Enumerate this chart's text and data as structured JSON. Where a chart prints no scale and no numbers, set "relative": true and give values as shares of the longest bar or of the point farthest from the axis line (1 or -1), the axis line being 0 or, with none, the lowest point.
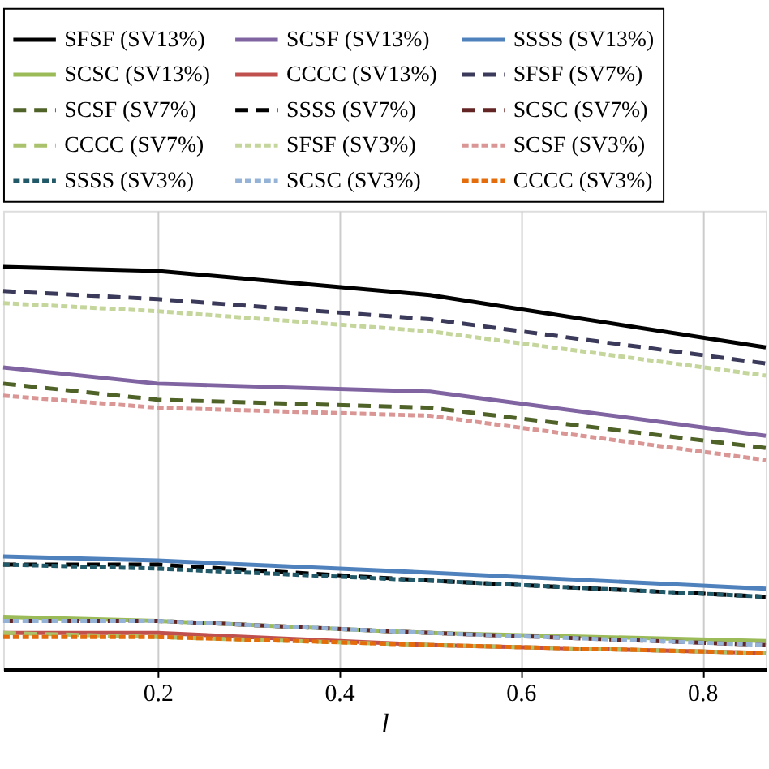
{
  "chart_data": {
    "type": "line",
    "relative": true,
    "xlabel": "l",
    "xlim": [
      0.03,
      0.87
    ],
    "xticks": [
      0.2,
      0.4,
      0.6,
      0.8
    ],
    "grid": "x",
    "legend": "top",
    "marker": "none",
    "series": [
      {
        "name": "SFSF (SV13%)",
        "color": "#000000",
        "line_style": "solid",
        "x": [
          0.03,
          0.2,
          0.5,
          0.87
        ],
        "values": [
          1.0,
          0.99,
          0.93,
          0.8
        ]
      },
      {
        "name": "SCSF (SV13%)",
        "color": "#8064a2",
        "line_style": "solid",
        "x": [
          0.03,
          0.2,
          0.5,
          0.87
        ],
        "values": [
          0.75,
          0.71,
          0.69,
          0.58
        ]
      },
      {
        "name": "SSSS (SV13%)",
        "color": "#4f81bd",
        "line_style": "solid",
        "x": [
          0.03,
          0.2,
          0.5,
          0.87
        ],
        "values": [
          0.28,
          0.27,
          0.24,
          0.2
        ]
      },
      {
        "name": "SCSC (SV13%)",
        "color": "#9bbb59",
        "line_style": "solid",
        "x": [
          0.03,
          0.2,
          0.5,
          0.87
        ],
        "values": [
          0.13,
          0.12,
          0.09,
          0.07
        ]
      },
      {
        "name": "CCCC (SV13%)",
        "color": "#c0504d",
        "line_style": "solid",
        "x": [
          0.03,
          0.2,
          0.5,
          0.87
        ],
        "values": [
          0.09,
          0.09,
          0.06,
          0.04
        ]
      },
      {
        "name": "SFSF (SV7%)",
        "color": "#3b3a5a",
        "line_style": "dashed",
        "x": [
          0.03,
          0.2,
          0.5,
          0.87
        ],
        "values": [
          0.94,
          0.92,
          0.87,
          0.76
        ]
      },
      {
        "name": "SCSF (SV7%)",
        "color": "#4f6228",
        "line_style": "dashed",
        "x": [
          0.03,
          0.2,
          0.5,
          0.87
        ],
        "values": [
          0.71,
          0.67,
          0.65,
          0.55
        ]
      },
      {
        "name": "SSSS (SV7%)",
        "color": "#000000",
        "line_style": "dashed",
        "x": [
          0.03,
          0.2,
          0.5,
          0.87
        ],
        "values": [
          0.26,
          0.26,
          0.22,
          0.18
        ]
      },
      {
        "name": "SCSC (SV7%)",
        "color": "#632523",
        "line_style": "dashed",
        "x": [
          0.03,
          0.2,
          0.5,
          0.87
        ],
        "values": [
          0.12,
          0.12,
          0.09,
          0.06
        ]
      },
      {
        "name": "CCCC (SV7%)",
        "color": "#a9c26b",
        "line_style": "dashed",
        "x": [
          0.03,
          0.2,
          0.5,
          0.87
        ],
        "values": [
          0.09,
          0.08,
          0.06,
          0.04
        ]
      },
      {
        "name": "SFSF (SV3%)",
        "color": "#c4d69b",
        "line_style": "dotted",
        "x": [
          0.03,
          0.2,
          0.5,
          0.87
        ],
        "values": [
          0.91,
          0.89,
          0.84,
          0.73
        ]
      },
      {
        "name": "SCSF (SV3%)",
        "color": "#d99694",
        "line_style": "dotted",
        "x": [
          0.03,
          0.2,
          0.5,
          0.87
        ],
        "values": [
          0.68,
          0.65,
          0.63,
          0.52
        ]
      },
      {
        "name": "SSSS (SV3%)",
        "color": "#215968",
        "line_style": "dotted",
        "x": [
          0.03,
          0.2,
          0.5,
          0.87
        ],
        "values": [
          0.26,
          0.25,
          0.22,
          0.18
        ]
      },
      {
        "name": "SCSC (SV3%)",
        "color": "#95b3d7",
        "line_style": "dotted",
        "x": [
          0.03,
          0.2,
          0.5,
          0.87
        ],
        "values": [
          0.12,
          0.12,
          0.09,
          0.06
        ]
      },
      {
        "name": "CCCC (SV3%)",
        "color": "#e46c0a",
        "line_style": "dotted",
        "x": [
          0.03,
          0.2,
          0.5,
          0.87
        ],
        "values": [
          0.08,
          0.08,
          0.06,
          0.04
        ]
      }
    ]
  }
}
